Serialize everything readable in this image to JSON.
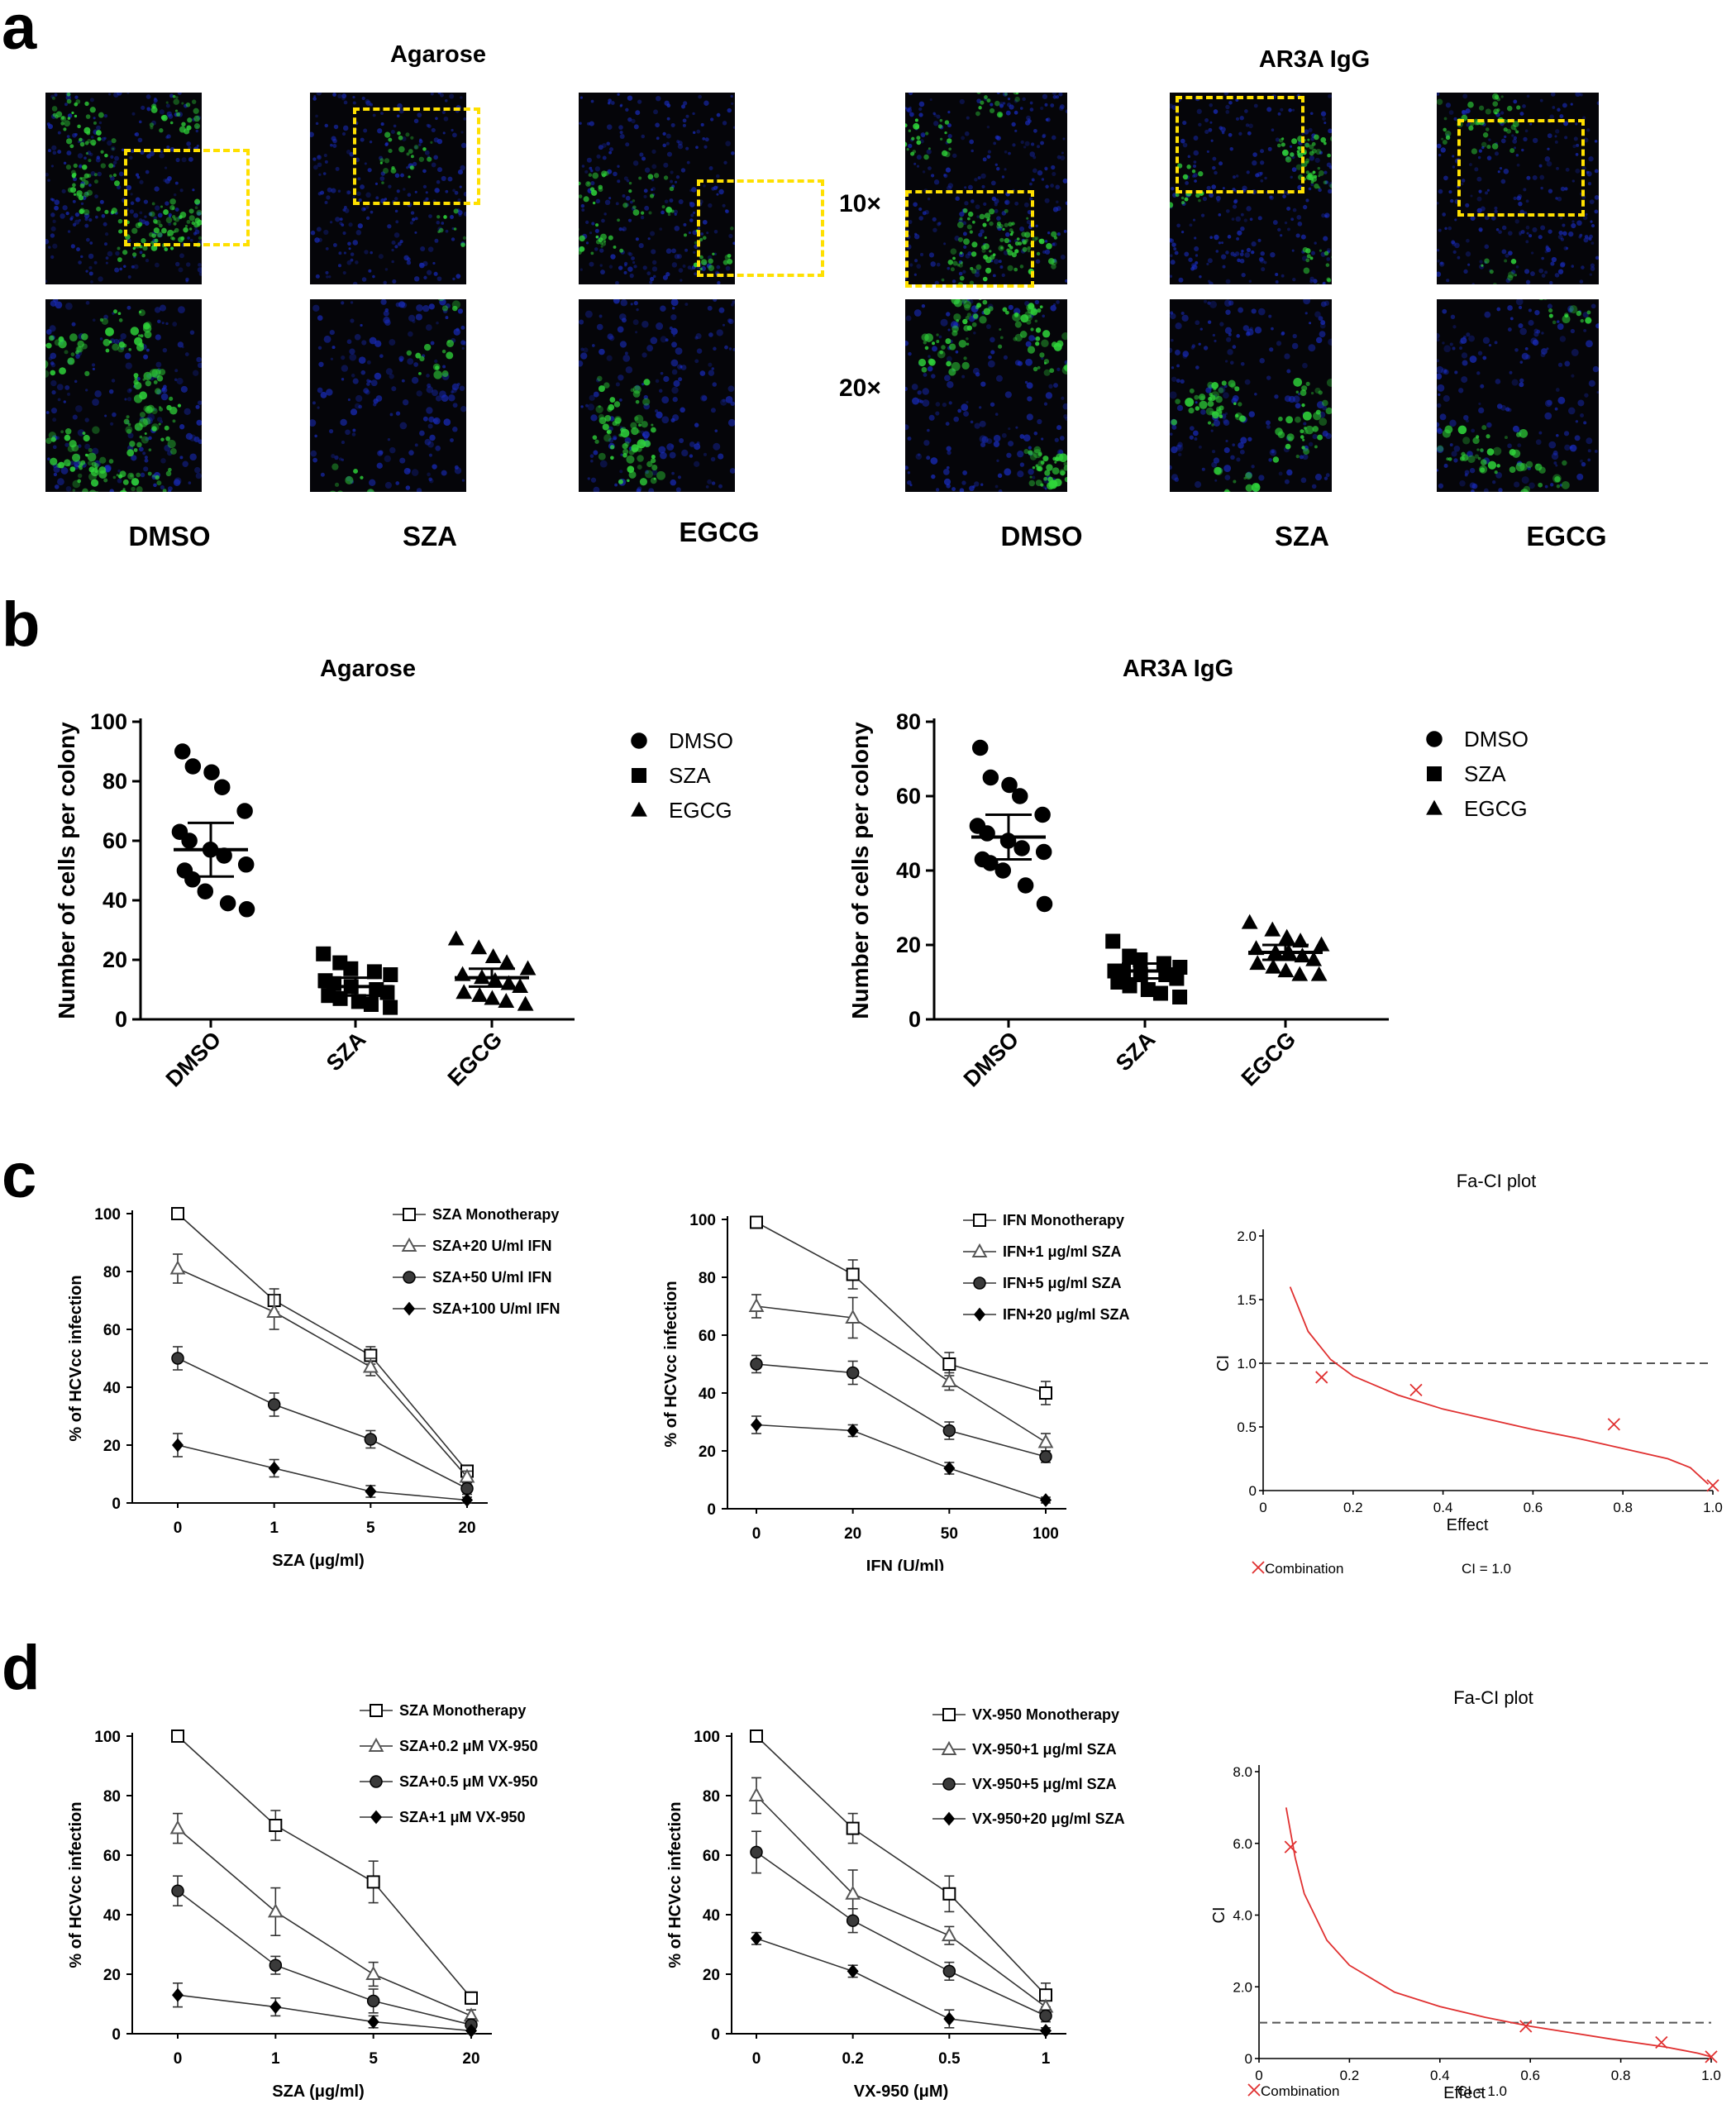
{
  "panel_letters": {
    "a": "a",
    "b": "b",
    "c": "c",
    "d": "d"
  },
  "panel_a": {
    "left_header": "Agarose",
    "right_header": "AR3A IgG",
    "mag_10x": "10×",
    "mag_20x": "20×",
    "captions_left": [
      "DMSO",
      "SZA",
      "EGCG"
    ],
    "captions_right": [
      "DMSO",
      "SZA",
      "EGCG"
    ],
    "colors": {
      "nuclei": "#1a2ec8",
      "signal": "#2fd43a",
      "highlight_box": "#ffe000"
    }
  },
  "chart_data": [
    {
      "id": "b1",
      "type": "scatter",
      "title": "Agarose",
      "ylabel": "Number of cells per colony",
      "ylim": [
        0,
        100
      ],
      "yticks": [
        0,
        20,
        40,
        60,
        80,
        100
      ],
      "categories": [
        "DMSO",
        "SZA",
        "EGCG"
      ],
      "legend_placement": "right",
      "series": [
        {
          "name": "DMSO",
          "marker": "circle",
          "values": [
            90,
            85,
            83,
            78,
            70,
            63,
            60,
            57,
            55,
            52,
            50,
            47,
            43,
            39,
            37
          ],
          "mean": 57,
          "error": [
            48,
            66
          ]
        },
        {
          "name": "SZA",
          "marker": "square",
          "values": [
            22,
            19,
            17,
            16,
            15,
            13,
            12,
            11,
            10,
            9,
            8,
            7,
            6,
            5,
            4
          ],
          "mean": 11,
          "error": [
            8,
            14
          ]
        },
        {
          "name": "EGCG",
          "marker": "triangle",
          "values": [
            27,
            24,
            21,
            19,
            17,
            15,
            14,
            13,
            12,
            11,
            9,
            8,
            7,
            6,
            5
          ],
          "mean": 14,
          "error": [
            11,
            17
          ]
        }
      ]
    },
    {
      "id": "b2",
      "type": "scatter",
      "title": "AR3A IgG",
      "ylabel": "Number of cells per colony",
      "ylim": [
        0,
        80
      ],
      "yticks": [
        0,
        20,
        40,
        60,
        80
      ],
      "categories": [
        "DMSO",
        "SZA",
        "EGCG"
      ],
      "legend_placement": "right",
      "series": [
        {
          "name": "DMSO",
          "marker": "circle",
          "values": [
            73,
            65,
            63,
            60,
            55,
            52,
            50,
            48,
            46,
            45,
            43,
            42,
            40,
            36,
            31
          ],
          "mean": 49,
          "error": [
            43,
            55
          ]
        },
        {
          "name": "SZA",
          "marker": "square",
          "values": [
            21,
            17,
            16,
            15,
            14,
            13,
            13,
            12,
            12,
            11,
            10,
            9,
            8,
            7,
            6
          ],
          "mean": 13,
          "error": [
            11,
            15
          ]
        },
        {
          "name": "EGCG",
          "marker": "triangle",
          "values": [
            26,
            24,
            22,
            21,
            20,
            19,
            18,
            18,
            17,
            16,
            15,
            14,
            13,
            12,
            12
          ],
          "mean": 18,
          "error": [
            16,
            20
          ]
        }
      ]
    },
    {
      "id": "c1",
      "type": "line",
      "xlabel": "SZA (μg/ml)",
      "ylabel": "% of HCVcc infection",
      "categories": [
        "0",
        "1",
        "5",
        "20"
      ],
      "ylim": [
        0,
        100
      ],
      "yticks": [
        0,
        20,
        40,
        60,
        80,
        100
      ],
      "legend_placement": "top-right",
      "series": [
        {
          "name": "SZA Monotherapy",
          "marker": "open-square",
          "values": [
            100,
            70,
            51,
            11
          ],
          "errors": [
            2,
            4,
            3,
            2
          ]
        },
        {
          "name": "SZA+20 U/ml IFN",
          "marker": "open-triangle",
          "values": [
            81,
            66,
            47,
            9
          ],
          "errors": [
            5,
            6,
            3,
            2
          ]
        },
        {
          "name": "SZA+50 U/ml IFN",
          "marker": "filled-circle",
          "values": [
            50,
            34,
            22,
            5
          ],
          "errors": [
            4,
            4,
            3,
            2
          ]
        },
        {
          "name": "SZA+100 U/ml IFN",
          "marker": "filled-diamond",
          "values": [
            20,
            12,
            4,
            1
          ],
          "errors": [
            4,
            3,
            2,
            1
          ]
        }
      ]
    },
    {
      "id": "c2",
      "type": "line",
      "xlabel": "IFN (U/ml)",
      "ylabel": "% of HCVcc infection",
      "categories": [
        "0",
        "20",
        "50",
        "100"
      ],
      "ylim": [
        0,
        100
      ],
      "yticks": [
        0,
        20,
        40,
        60,
        80,
        100
      ],
      "legend_placement": "top-right",
      "series": [
        {
          "name": "IFN Monotherapy",
          "marker": "open-square",
          "values": [
            99,
            81,
            50,
            40
          ],
          "errors": [
            2,
            5,
            4,
            4
          ]
        },
        {
          "name": "IFN+1 μg/ml SZA",
          "marker": "open-triangle",
          "values": [
            70,
            66,
            44,
            23
          ],
          "errors": [
            4,
            7,
            3,
            3
          ]
        },
        {
          "name": "IFN+5 μg/ml SZA",
          "marker": "filled-circle",
          "values": [
            50,
            47,
            27,
            18
          ],
          "errors": [
            3,
            4,
            3,
            2
          ]
        },
        {
          "name": "IFN+20 μg/ml SZA",
          "marker": "filled-diamond",
          "values": [
            29,
            27,
            14,
            3
          ],
          "errors": [
            3,
            2,
            2,
            1
          ]
        }
      ]
    },
    {
      "id": "c3",
      "type": "line",
      "title": "Fa-CI plot",
      "xlabel": "Effect",
      "ylabel": "CI",
      "xlim": [
        0,
        1
      ],
      "ylim": [
        0,
        2
      ],
      "xticks": [
        "0",
        "0.2",
        "0.4",
        "0.6",
        "0.8",
        "1.0"
      ],
      "yticks": [
        "0",
        "0.5",
        "1.0",
        "1.5",
        "2.0"
      ],
      "reference_line": 1.0,
      "curve": [
        [
          0.06,
          1.6
        ],
        [
          0.1,
          1.25
        ],
        [
          0.15,
          1.03
        ],
        [
          0.2,
          0.9
        ],
        [
          0.3,
          0.75
        ],
        [
          0.4,
          0.64
        ],
        [
          0.5,
          0.56
        ],
        [
          0.6,
          0.48
        ],
        [
          0.7,
          0.41
        ],
        [
          0.8,
          0.33
        ],
        [
          0.9,
          0.25
        ],
        [
          0.95,
          0.18
        ],
        [
          0.99,
          0.05
        ]
      ],
      "points": [
        [
          0.13,
          0.89
        ],
        [
          0.34,
          0.79
        ],
        [
          0.78,
          0.52
        ],
        [
          1.0,
          0.04
        ]
      ],
      "legend": {
        "marker_label": "Combination",
        "line_label": "CI = 1.0"
      },
      "colors": {
        "curve": "#e03030",
        "reference": "#555555"
      }
    },
    {
      "id": "d1",
      "type": "line",
      "xlabel": "SZA (μg/ml)",
      "ylabel": "% of HCVcc infection",
      "categories": [
        "0",
        "1",
        "5",
        "20"
      ],
      "ylim": [
        0,
        100
      ],
      "yticks": [
        0,
        20,
        40,
        60,
        80,
        100
      ],
      "legend_placement": "top-right",
      "series": [
        {
          "name": "SZA Monotherapy",
          "marker": "open-square",
          "values": [
            100,
            70,
            51,
            12
          ],
          "errors": [
            2,
            5,
            7,
            2
          ]
        },
        {
          "name": "SZA+0.2  μM VX-950",
          "marker": "open-triangle",
          "values": [
            69,
            41,
            20,
            6
          ],
          "errors": [
            5,
            8,
            4,
            2
          ]
        },
        {
          "name": "SZA+0.5  μM VX-950",
          "marker": "filled-circle",
          "values": [
            48,
            23,
            11,
            3
          ],
          "errors": [
            5,
            3,
            4,
            2
          ]
        },
        {
          "name": "SZA+1  μM VX-950",
          "marker": "filled-diamond",
          "values": [
            13,
            9,
            4,
            1
          ],
          "errors": [
            4,
            3,
            2,
            1
          ]
        }
      ]
    },
    {
      "id": "d2",
      "type": "line",
      "xlabel": "VX-950 (μM)",
      "ylabel": "% of HCVcc infection",
      "categories": [
        "0",
        "0.2",
        "0.5",
        "1"
      ],
      "ylim": [
        0,
        100
      ],
      "yticks": [
        0,
        20,
        40,
        60,
        80,
        100
      ],
      "legend_placement": "top-right",
      "series": [
        {
          "name": "VX-950 Monotherapy",
          "marker": "open-square",
          "values": [
            100,
            69,
            47,
            13
          ],
          "errors": [
            2,
            5,
            6,
            4
          ]
        },
        {
          "name": "VX-950+1  μg/ml SZA",
          "marker": "open-triangle",
          "values": [
            80,
            47,
            33,
            9
          ],
          "errors": [
            6,
            8,
            3,
            2
          ]
        },
        {
          "name": "VX-950+5  μg/ml SZA",
          "marker": "filled-circle",
          "values": [
            61,
            38,
            21,
            6
          ],
          "errors": [
            7,
            4,
            3,
            2
          ]
        },
        {
          "name": "VX-950+20  μg/ml SZA",
          "marker": "filled-diamond",
          "values": [
            32,
            21,
            5,
            1
          ],
          "errors": [
            2,
            2,
            3,
            1
          ]
        }
      ]
    },
    {
      "id": "d3",
      "type": "line",
      "title": "Fa-CI plot",
      "xlabel": "Effect",
      "ylabel": "CI",
      "xlim": [
        0,
        1
      ],
      "ylim": [
        0,
        8
      ],
      "xticks": [
        "0",
        "0.2",
        "0.4",
        "0.6",
        "0.8",
        "1.0"
      ],
      "yticks": [
        "0",
        "2.0",
        "4.0",
        "6.0",
        "8.0"
      ],
      "reference_line": 1.0,
      "curve": [
        [
          0.06,
          7.0
        ],
        [
          0.08,
          5.6
        ],
        [
          0.1,
          4.6
        ],
        [
          0.15,
          3.3
        ],
        [
          0.2,
          2.6
        ],
        [
          0.3,
          1.85
        ],
        [
          0.4,
          1.45
        ],
        [
          0.5,
          1.15
        ],
        [
          0.6,
          0.9
        ],
        [
          0.7,
          0.7
        ],
        [
          0.8,
          0.5
        ],
        [
          0.9,
          0.32
        ],
        [
          0.97,
          0.15
        ],
        [
          1.0,
          0.05
        ]
      ],
      "points": [
        [
          0.07,
          5.9
        ],
        [
          0.59,
          0.9
        ],
        [
          0.89,
          0.45
        ],
        [
          1.0,
          0.05
        ]
      ],
      "legend": {
        "marker_label": "Combination",
        "line_label": "CI = 1.0"
      },
      "colors": {
        "curve": "#e03030",
        "reference": "#555555"
      }
    }
  ]
}
